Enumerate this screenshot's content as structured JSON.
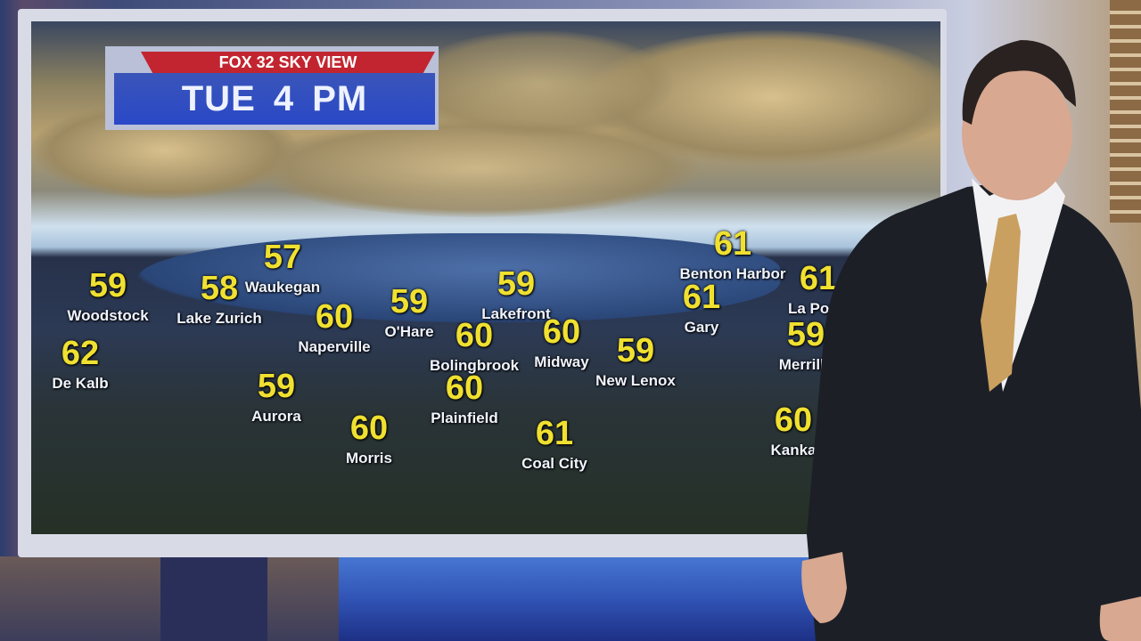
{
  "graphic": {
    "brand_label": "FOX 32 SKY VIEW",
    "time_label": "TUE  4 PM"
  },
  "colors": {
    "temperature": "#f0e030",
    "banner_red": "#c22530",
    "banner_blue": "#2a48c8"
  },
  "cities": [
    {
      "name": "Woodstock",
      "temp": "59"
    },
    {
      "name": "Lake Zurich",
      "temp": "58"
    },
    {
      "name": "Waukegan",
      "temp": "57"
    },
    {
      "name": "Naperville",
      "temp": "60"
    },
    {
      "name": "O'Hare",
      "temp": "59"
    },
    {
      "name": "De Kalb",
      "temp": "62"
    },
    {
      "name": "Aurora",
      "temp": "59"
    },
    {
      "name": "Morris",
      "temp": "60"
    },
    {
      "name": "Plainfield",
      "temp": "60"
    },
    {
      "name": "Bolingbrook",
      "temp": "60"
    },
    {
      "name": "Lakefront",
      "temp": "59"
    },
    {
      "name": "Midway",
      "temp": "60"
    },
    {
      "name": "New Lenox",
      "temp": "59"
    },
    {
      "name": "Coal City",
      "temp": "61"
    },
    {
      "name": "Gary",
      "temp": "61"
    },
    {
      "name": "Benton Harbor",
      "temp": "61"
    },
    {
      "name": "La Porte",
      "temp": "61"
    },
    {
      "name": "Merrillv",
      "temp": "59"
    },
    {
      "name": "Kanka",
      "temp": "60"
    }
  ]
}
